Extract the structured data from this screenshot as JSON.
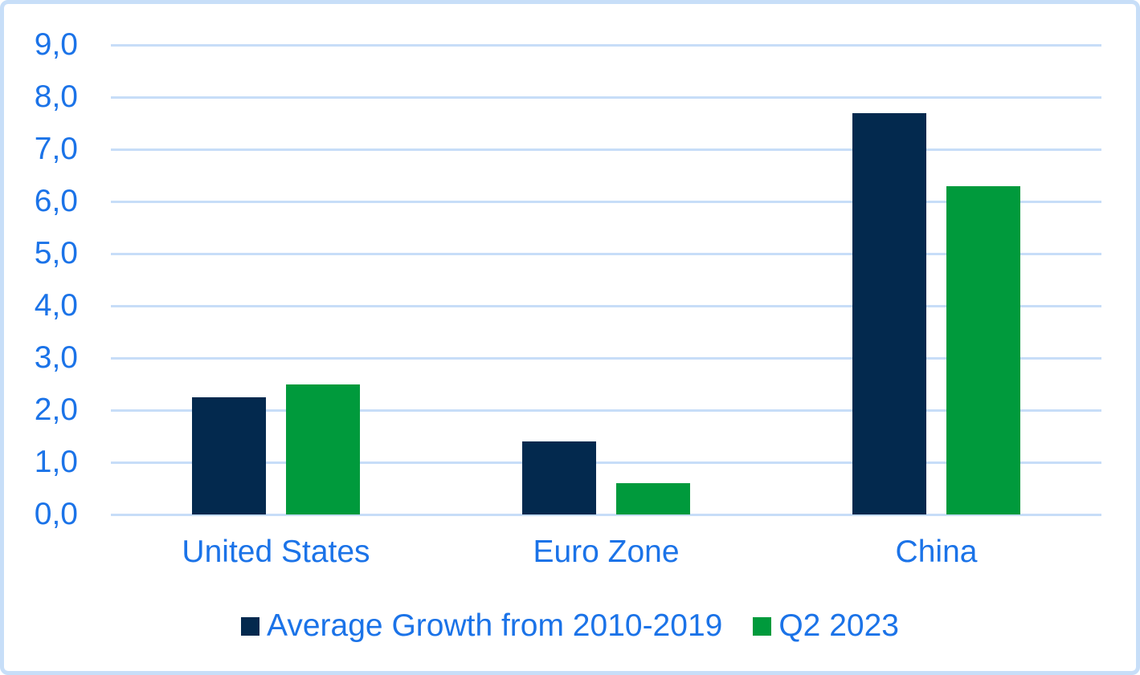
{
  "chart_data": {
    "type": "bar",
    "categories": [
      "United States",
      "Euro Zone",
      "China"
    ],
    "series": [
      {
        "name": "Average Growth from 2010-2019",
        "color": "#03294E",
        "values": [
          2.25,
          1.4,
          7.7
        ]
      },
      {
        "name": "Q2 2023",
        "color": "#009A3C",
        "values": [
          2.5,
          0.6,
          6.3
        ]
      }
    ],
    "title": "",
    "xlabel": "",
    "ylabel": "",
    "ylim": [
      0,
      9
    ],
    "ytick_step": 1,
    "ytick_labels": [
      "0,0",
      "1,0",
      "2,0",
      "3,0",
      "4,0",
      "5,0",
      "6,0",
      "7,0",
      "8,0",
      "9,0"
    ],
    "grid": true,
    "gridline_orientation": "horizontal",
    "legend_position": "bottom"
  },
  "style": {
    "axis_text_color": "#1B73E8",
    "gridline_color": "#C7DDF8",
    "frame_border_color": "#C7DEF8",
    "background": "#FFFFFF"
  }
}
